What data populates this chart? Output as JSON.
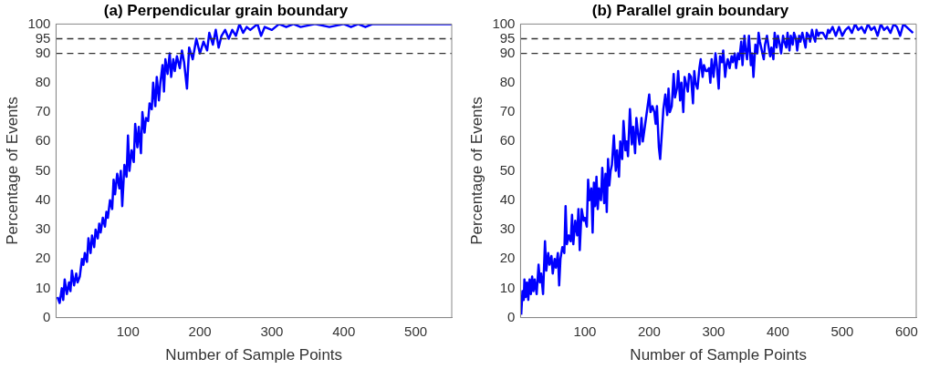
{
  "chart_data": [
    {
      "type": "line",
      "title": "(a) Perpendicular grain boundary",
      "xlabel": "Number of Sample Points",
      "ylabel": "Percentage of Events",
      "xlim": [
        0,
        550
      ],
      "xticks": [
        100,
        200,
        300,
        400,
        500
      ],
      "ylim": [
        0,
        100
      ],
      "yticks": [
        0,
        10,
        20,
        30,
        40,
        50,
        60,
        70,
        80,
        90,
        95,
        100
      ],
      "grid": false,
      "legend": false,
      "ref_lines": [
        {
          "axis": "y",
          "value": 90,
          "color": "#333333",
          "line_style": "dashed"
        },
        {
          "axis": "y",
          "value": 95,
          "color": "#333333",
          "line_style": "dashed"
        }
      ],
      "series": [
        {
          "color": "#0000ff",
          "x": [
            2,
            5,
            8,
            10,
            12,
            15,
            18,
            20,
            22,
            25,
            28,
            30,
            33,
            36,
            38,
            40,
            43,
            45,
            48,
            50,
            53,
            55,
            58,
            60,
            62,
            65,
            68,
            70,
            72,
            75,
            78,
            80,
            82,
            85,
            88,
            90,
            92,
            95,
            98,
            100,
            102,
            105,
            108,
            110,
            113,
            115,
            118,
            120,
            123,
            125,
            128,
            130,
            133,
            135,
            138,
            140,
            143,
            145,
            148,
            150,
            152,
            155,
            158,
            160,
            163,
            165,
            168,
            172,
            175,
            178,
            182,
            185,
            190,
            195,
            200,
            205,
            210,
            213,
            218,
            222,
            226,
            230,
            235,
            240,
            245,
            250,
            255,
            260,
            265,
            270,
            280,
            285,
            290,
            300,
            310,
            320,
            330,
            340,
            360,
            380,
            400,
            410,
            420,
            430,
            440,
            550
          ],
          "values": [
            7,
            5,
            10,
            6,
            13,
            8,
            12,
            9,
            16,
            11,
            15,
            12,
            14,
            20,
            18,
            22,
            19,
            27,
            22,
            28,
            24,
            30,
            27,
            32,
            29,
            34,
            31,
            36,
            34,
            40,
            37,
            47,
            42,
            49,
            44,
            50,
            38,
            52,
            48,
            62,
            50,
            57,
            53,
            66,
            58,
            65,
            56,
            70,
            63,
            68,
            67,
            73,
            71,
            80,
            72,
            82,
            74,
            80,
            86,
            77,
            88,
            83,
            90,
            82,
            88,
            84,
            89,
            85,
            91,
            87,
            78,
            92,
            88,
            95,
            90,
            94,
            91,
            97,
            93,
            98,
            92,
            96,
            98,
            95,
            98,
            96,
            100,
            97,
            99,
            98,
            100,
            96,
            99,
            98,
            100,
            99,
            100,
            99,
            100,
            99,
            100,
            99,
            100,
            99,
            100,
            100
          ]
        }
      ]
    },
    {
      "type": "line",
      "title": "(b) Parallel grain boundary",
      "xlabel": "Number of Sample Points",
      "ylabel": "Percentage of Events",
      "xlim": [
        0,
        615
      ],
      "xticks": [
        100,
        200,
        300,
        400,
        500,
        600
      ],
      "ylim": [
        0,
        100
      ],
      "yticks": [
        0,
        10,
        20,
        30,
        40,
        50,
        60,
        70,
        80,
        90,
        95,
        100
      ],
      "grid": false,
      "legend": false,
      "ref_lines": [
        {
          "axis": "y",
          "value": 90,
          "color": "#333333",
          "line_style": "dashed"
        },
        {
          "axis": "y",
          "value": 95,
          "color": "#333333",
          "line_style": "dashed"
        }
      ],
      "series": [
        {
          "color": "#0000ff",
          "x": [
            1,
            3,
            5,
            6,
            8,
            10,
            12,
            14,
            16,
            18,
            20,
            22,
            25,
            28,
            30,
            32,
            35,
            38,
            40,
            43,
            45,
            48,
            50,
            53,
            55,
            58,
            60,
            62,
            65,
            68,
            70,
            72,
            75,
            78,
            80,
            82,
            85,
            88,
            90,
            92,
            95,
            98,
            100,
            103,
            105,
            107,
            110,
            112,
            114,
            116,
            118,
            120,
            122,
            125,
            127,
            130,
            132,
            134,
            136,
            138,
            140,
            142,
            145,
            148,
            150,
            153,
            155,
            158,
            160,
            163,
            165,
            167,
            170,
            173,
            175,
            178,
            180,
            183,
            185,
            188,
            190,
            195,
            200,
            202,
            205,
            208,
            210,
            212,
            215,
            217,
            220,
            222,
            225,
            228,
            230,
            232,
            235,
            238,
            240,
            243,
            245,
            248,
            250,
            253,
            255,
            258,
            260,
            262,
            265,
            268,
            270,
            272,
            275,
            278,
            280,
            283,
            285,
            288,
            290,
            293,
            295,
            297,
            300,
            303,
            305,
            308,
            310,
            313,
            315,
            318,
            320,
            322,
            325,
            328,
            330,
            333,
            335,
            338,
            340,
            343,
            345,
            348,
            350,
            352,
            355,
            358,
            360,
            362,
            365,
            368,
            370,
            372,
            375,
            378,
            380,
            383,
            385,
            388,
            390,
            393,
            395,
            398,
            400,
            403,
            405,
            408,
            410,
            413,
            415,
            418,
            420,
            423,
            425,
            428,
            430,
            433,
            435,
            438,
            440,
            443,
            445,
            448,
            450,
            453,
            455,
            458,
            460,
            463,
            465,
            470,
            475,
            478,
            480,
            485,
            490,
            495,
            500,
            505,
            510,
            515,
            520,
            525,
            530,
            535,
            540,
            545,
            550,
            555,
            560,
            565,
            570,
            575,
            580,
            585,
            590,
            595,
            600,
            605,
            610
          ],
          "values": [
            1,
            9,
            6,
            13,
            7,
            12,
            6,
            13,
            8,
            14,
            9,
            13,
            8,
            18,
            12,
            15,
            8,
            26,
            16,
            22,
            18,
            21,
            15,
            20,
            17,
            22,
            11,
            20,
            24,
            22,
            38,
            25,
            28,
            26,
            35,
            25,
            33,
            28,
            37,
            23,
            37,
            33,
            34,
            31,
            47,
            40,
            44,
            29,
            46,
            38,
            48,
            37,
            44,
            40,
            51,
            39,
            49,
            36,
            54,
            45,
            50,
            52,
            62,
            50,
            57,
            48,
            60,
            54,
            67,
            57,
            60,
            55,
            71,
            59,
            65,
            56,
            68,
            62,
            59,
            68,
            60,
            68,
            76,
            70,
            72,
            70,
            66,
            72,
            58,
            54,
            64,
            71,
            76,
            69,
            78,
            70,
            72,
            83,
            75,
            78,
            84,
            74,
            80,
            70,
            82,
            79,
            77,
            83,
            82,
            73,
            84,
            80,
            78,
            85,
            88,
            82,
            86,
            84,
            84,
            85,
            80,
            88,
            82,
            90,
            86,
            78,
            89,
            87,
            91,
            82,
            86,
            88,
            85,
            89,
            87,
            90,
            85,
            90,
            88,
            94,
            86,
            96,
            91,
            88,
            96,
            86,
            90,
            82,
            93,
            90,
            97,
            94,
            91,
            88,
            93,
            96,
            93,
            89,
            92,
            88,
            97,
            92,
            96,
            93,
            90,
            96,
            94,
            92,
            97,
            91,
            96,
            93,
            97,
            95,
            91,
            96,
            94,
            97,
            95,
            92,
            97,
            96,
            94,
            98,
            96,
            94,
            98,
            96,
            97,
            97,
            95,
            98,
            97,
            99,
            96,
            99,
            96,
            98,
            99,
            97,
            100,
            98,
            99,
            97,
            100,
            98,
            99,
            96,
            100,
            98,
            99,
            97,
            100,
            99,
            96,
            100,
            99,
            98,
            97
          ]
        }
      ]
    }
  ]
}
